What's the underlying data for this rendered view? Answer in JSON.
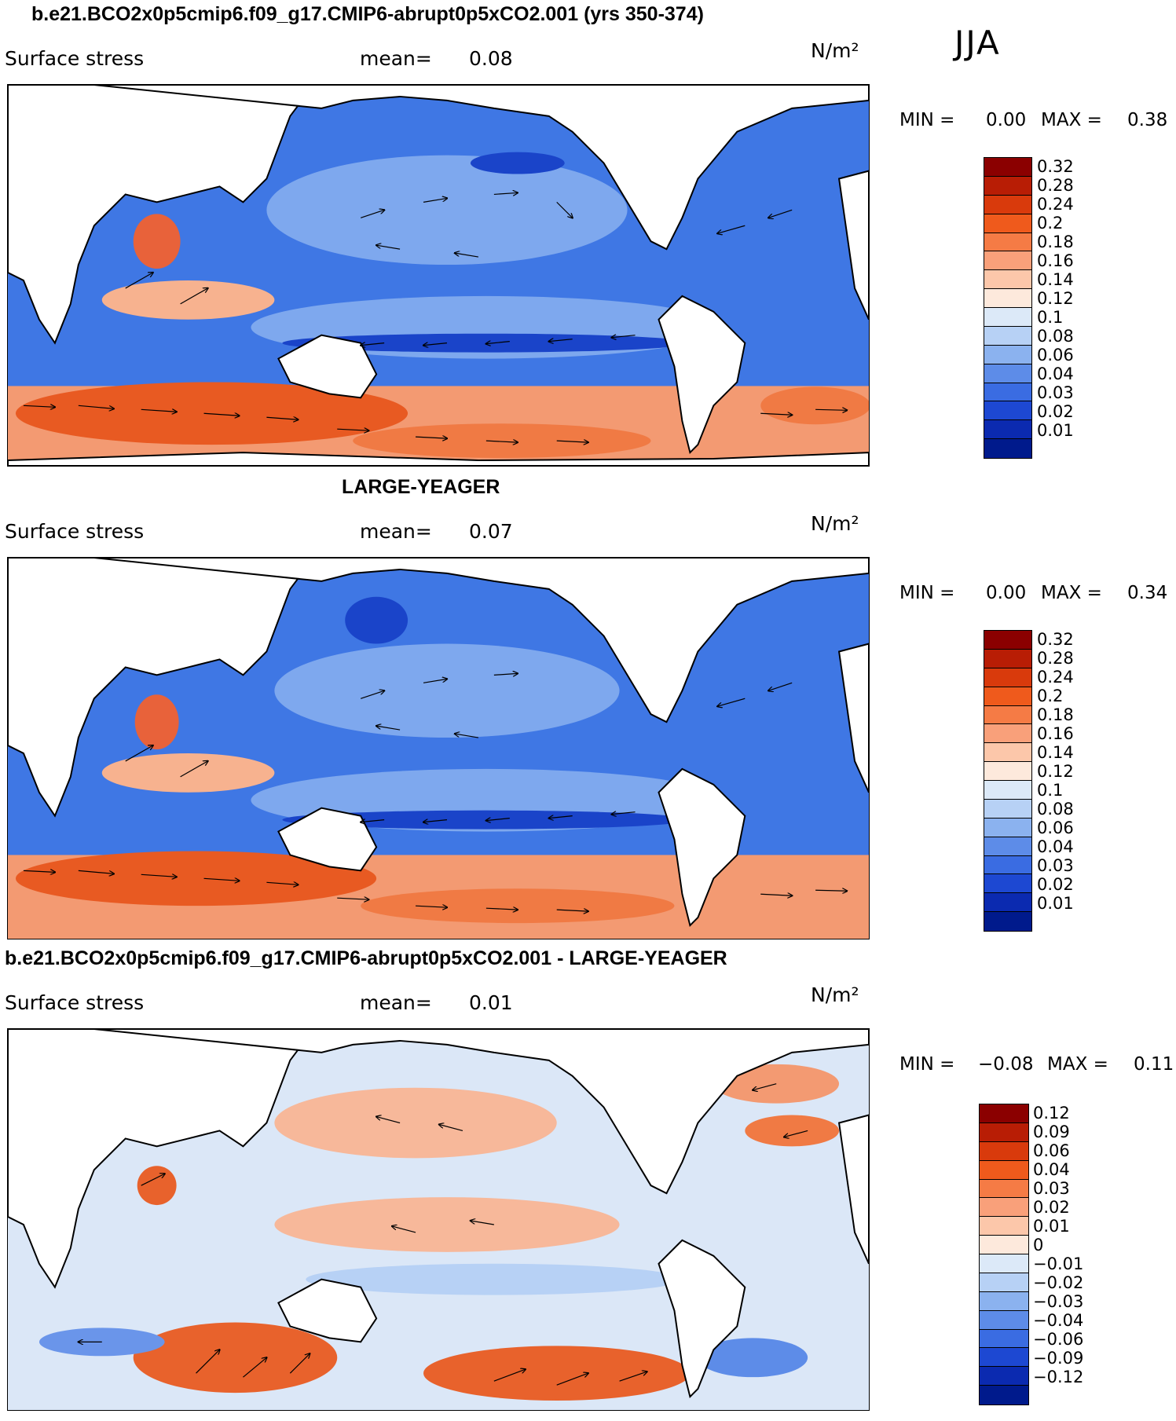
{
  "season": "JJA",
  "panels": [
    {
      "title": "b.e21.BCO2x0p5cmip6.f09_g17.CMIP6-abrupt0p5xCO2.001 (yrs 350-374)",
      "variable": "Surface stress",
      "mean_label": "mean=",
      "mean_value": "0.08",
      "units": "N/m²",
      "min_label": "MIN =",
      "min_value": "0.00",
      "max_label": "MAX =",
      "max_value": "0.38",
      "levels": [
        "0.32",
        "0.28",
        "0.24",
        "0.2",
        "0.18",
        "0.16",
        "0.14",
        "0.12",
        "0.1",
        "0.08",
        "0.06",
        "0.04",
        "0.03",
        "0.02",
        "0.01"
      ],
      "colors": [
        "#8b0000",
        "#b81d05",
        "#d93a0c",
        "#ef5a1c",
        "#f57b45",
        "#f9a07a",
        "#fcc7aa",
        "#fde9dc",
        "#dce9f8",
        "#b7d1f5",
        "#8bb2ef",
        "#5d8ce8",
        "#3a6ce2",
        "#1d48d2",
        "#0b2ab0",
        "#001a8c"
      ]
    },
    {
      "title": "LARGE-YEAGER",
      "variable": "Surface stress",
      "mean_label": "mean=",
      "mean_value": "0.07",
      "units": "N/m²",
      "min_label": "MIN =",
      "min_value": "0.00",
      "max_label": "MAX =",
      "max_value": "0.34",
      "levels": [
        "0.32",
        "0.28",
        "0.24",
        "0.2",
        "0.18",
        "0.16",
        "0.14",
        "0.12",
        "0.1",
        "0.08",
        "0.06",
        "0.04",
        "0.03",
        "0.02",
        "0.01"
      ],
      "colors": [
        "#8b0000",
        "#b81d05",
        "#d93a0c",
        "#ef5a1c",
        "#f57b45",
        "#f9a07a",
        "#fcc7aa",
        "#fde9dc",
        "#dce9f8",
        "#b7d1f5",
        "#8bb2ef",
        "#5d8ce8",
        "#3a6ce2",
        "#1d48d2",
        "#0b2ab0",
        "#001a8c"
      ]
    },
    {
      "title": "b.e21.BCO2x0p5cmip6.f09_g17.CMIP6-abrupt0p5xCO2.001 - LARGE-YEAGER",
      "variable": "Surface stress",
      "mean_label": "mean=",
      "mean_value": "0.01",
      "units": "N/m²",
      "min_label": "MIN =",
      "min_value": "−0.08",
      "max_label": "MAX =",
      "max_value": "0.11",
      "levels": [
        "0.12",
        "0.09",
        "0.06",
        "0.04",
        "0.03",
        "0.02",
        "0.01",
        "0",
        "−0.01",
        "−0.02",
        "−0.03",
        "−0.04",
        "−0.06",
        "−0.09",
        "−0.12"
      ],
      "colors": [
        "#8b0000",
        "#b81d05",
        "#d93a0c",
        "#ef5a1c",
        "#f57b45",
        "#f9a07a",
        "#fcc7aa",
        "#fde9dc",
        "#dce9f8",
        "#b7d1f5",
        "#8bb2ef",
        "#5d8ce8",
        "#3a6ce2",
        "#1d48d2",
        "#0b2ab0",
        "#001a8c"
      ]
    }
  ]
}
